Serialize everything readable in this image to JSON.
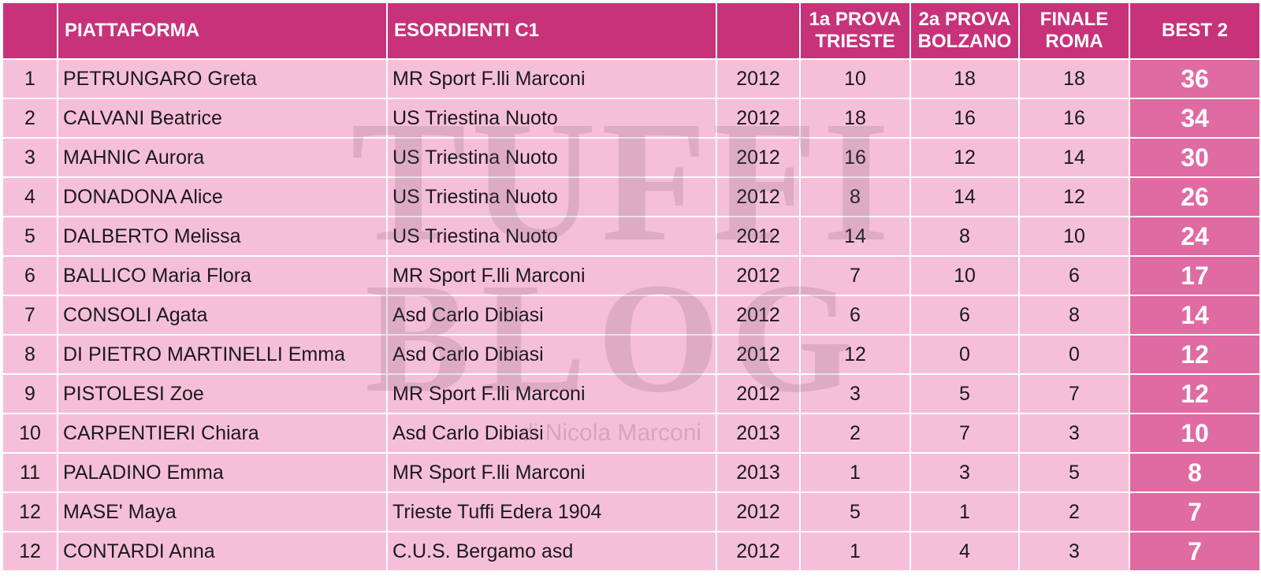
{
  "header": {
    "col_rank": "",
    "col_name": "PIATTAFORMA",
    "col_club": "ESORDIENTI C1",
    "col_year": "",
    "col_p1_line1": "1a PROVA",
    "col_p1_line2": "TRIESTE",
    "col_p2_line1": "2a PROVA",
    "col_p2_line2": "BOLZANO",
    "col_fin_line1": "FINALE",
    "col_fin_line2": "ROMA",
    "col_best": "BEST 2"
  },
  "rows": [
    {
      "rank": "1",
      "name": "PETRUNGARO Greta",
      "club": "MR Sport F.lli Marconi",
      "year": "2012",
      "p1": "10",
      "p2": "18",
      "fin": "18",
      "best": "36"
    },
    {
      "rank": "2",
      "name": "CALVANI Beatrice",
      "club": "US Triestina Nuoto",
      "year": "2012",
      "p1": "18",
      "p2": "16",
      "fin": "16",
      "best": "34"
    },
    {
      "rank": "3",
      "name": "MAHNIC Aurora",
      "club": "US Triestina Nuoto",
      "year": "2012",
      "p1": "16",
      "p2": "12",
      "fin": "14",
      "best": "30"
    },
    {
      "rank": "4",
      "name": "DONADONA Alice",
      "club": "US Triestina Nuoto",
      "year": "2012",
      "p1": "8",
      "p2": "14",
      "fin": "12",
      "best": "26"
    },
    {
      "rank": "5",
      "name": "DALBERTO Melissa",
      "club": "US Triestina Nuoto",
      "year": "2012",
      "p1": "14",
      "p2": "8",
      "fin": "10",
      "best": "24"
    },
    {
      "rank": "6",
      "name": "BALLICO Maria Flora",
      "club": "MR Sport F.lli Marconi",
      "year": "2012",
      "p1": "7",
      "p2": "10",
      "fin": "6",
      "best": "17"
    },
    {
      "rank": "7",
      "name": "CONSOLI Agata",
      "club": "Asd Carlo Dibiasi",
      "year": "2012",
      "p1": "6",
      "p2": "6",
      "fin": "8",
      "best": "14"
    },
    {
      "rank": "8",
      "name": "DI PIETRO MARTINELLI Emma",
      "club": "Asd Carlo Dibiasi",
      "year": "2012",
      "p1": "12",
      "p2": "0",
      "fin": "0",
      "best": "12"
    },
    {
      "rank": "9",
      "name": "PISTOLESI Zoe",
      "club": "MR Sport F.lli Marconi",
      "year": "2012",
      "p1": "3",
      "p2": "5",
      "fin": "7",
      "best": "12"
    },
    {
      "rank": "10",
      "name": "CARPENTIERI Chiara",
      "club": "Asd Carlo Dibiasi",
      "year": "2013",
      "p1": "2",
      "p2": "7",
      "fin": "3",
      "best": "10"
    },
    {
      "rank": "11",
      "name": "PALADINO Emma",
      "club": "MR Sport F.lli Marconi",
      "year": "2013",
      "p1": "1",
      "p2": "3",
      "fin": "5",
      "best": "8"
    },
    {
      "rank": "12",
      "name": "MASE' Maya",
      "club": "Trieste Tuffi Edera 1904",
      "year": "2012",
      "p1": "5",
      "p2": "1",
      "fin": "2",
      "best": "7"
    },
    {
      "rank": "12",
      "name": "CONTARDI Anna",
      "club": "C.U.S. Bergamo asd",
      "year": "2012",
      "p1": "1",
      "p2": "4",
      "fin": "3",
      "best": "7"
    }
  ],
  "watermark": {
    "line1": "TUFFI",
    "line2": "BLOG",
    "line3": "di Nicola Marconi"
  },
  "colors": {
    "header_bg": "#c8327a",
    "row_bg": "#f6bfd9",
    "best_bg": "#e06aa2"
  }
}
